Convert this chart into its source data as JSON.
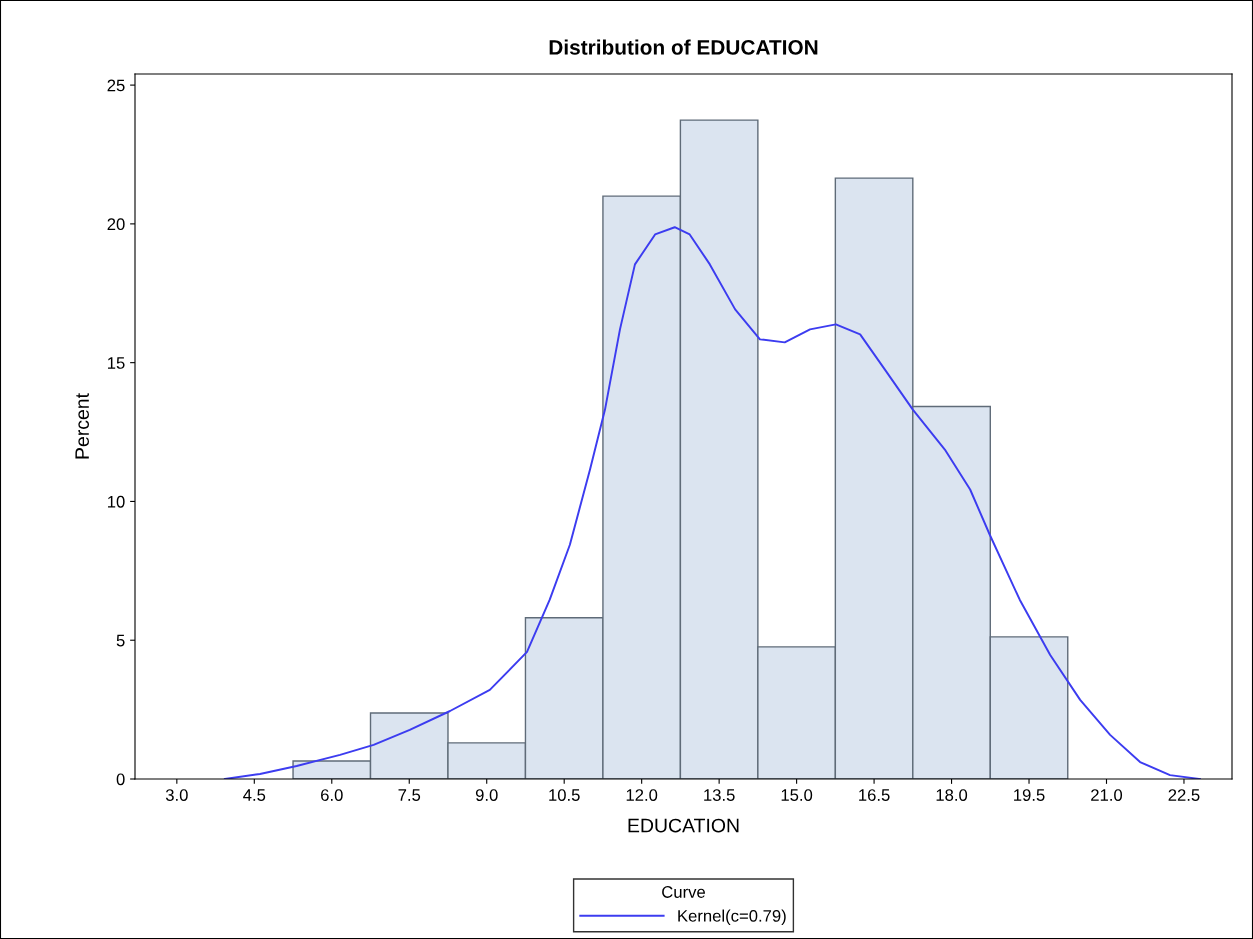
{
  "chart_data": {
    "type": "histogram",
    "title": "Distribution of EDUCATION",
    "xlabel": "EDUCATION",
    "ylabel": "Percent",
    "legend_title": "Curve",
    "legend": "bottom",
    "grid": false,
    "bins": [
      5.25,
      6.75,
      8.25,
      9.75,
      11.25,
      12.75,
      14.25,
      15.75,
      17.25,
      18.75,
      20.25
    ],
    "values": [
      0.65,
      2.38,
      1.3,
      5.81,
      21.0,
      23.74,
      4.76,
      21.65,
      13.42,
      5.12
    ],
    "color": "#dbe4f0",
    "series": [
      {
        "type": "line",
        "name": "Kernel(c=0.79)",
        "color": "#3c3cf0",
        "x": [
          3.93,
          4.61,
          5.32,
          6.16,
          6.81,
          7.51,
          8.29,
          9.06,
          9.78,
          10.22,
          10.61,
          11.0,
          11.29,
          11.58,
          11.87,
          12.26,
          12.64,
          12.93,
          13.32,
          13.81,
          14.29,
          14.77,
          15.26,
          15.76,
          16.23,
          16.71,
          17.25,
          17.87,
          18.36,
          18.74,
          19.32,
          19.91,
          20.49,
          21.07,
          21.65,
          22.23,
          22.81
        ],
        "values": [
          0,
          0.18,
          0.47,
          0.87,
          1.23,
          1.77,
          2.45,
          3.21,
          4.58,
          6.46,
          8.44,
          11.15,
          13.31,
          16.2,
          18.54,
          19.62,
          19.88,
          19.62,
          18.54,
          16.92,
          15.84,
          15.73,
          16.2,
          16.38,
          16.02,
          14.75,
          13.31,
          11.87,
          10.43,
          8.8,
          6.46,
          4.47,
          2.85,
          1.59,
          0.61,
          0.14,
          0
        ]
      }
    ],
    "xlim": [
      2.19,
      23.43
    ],
    "ylim": [
      0,
      25.4
    ],
    "xticks": [
      {
        "value": 3,
        "label": "3.0"
      },
      {
        "value": 4.5,
        "label": "4.5"
      },
      {
        "value": 6,
        "label": "6.0"
      },
      {
        "value": 7.5,
        "label": "7.5"
      },
      {
        "value": 9,
        "label": "9.0"
      },
      {
        "value": 10.5,
        "label": "10.5"
      },
      {
        "value": 12,
        "label": "12.0"
      },
      {
        "value": 13.5,
        "label": "13.5"
      },
      {
        "value": 15,
        "label": "15.0"
      },
      {
        "value": 16.5,
        "label": "16.5"
      },
      {
        "value": 18,
        "label": "18.0"
      },
      {
        "value": 19.5,
        "label": "19.5"
      },
      {
        "value": 21,
        "label": "21.0"
      },
      {
        "value": 22.5,
        "label": "22.5"
      }
    ],
    "yticks": [
      0,
      5,
      10,
      15,
      20,
      25
    ]
  }
}
